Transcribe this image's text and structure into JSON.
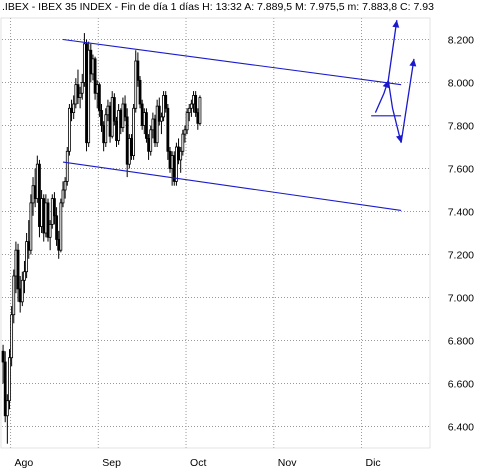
{
  "header": {
    "text": ".IBEX - IBEX 35 INDEX - Fin de día 1 días  H: 13:32  A: 7.889,5  M: 7.975,5  m: 7.883,8  C: 7.93"
  },
  "colors": {
    "channel": "#1a1acc",
    "candle_up": "#ffffff",
    "candle_down": "#000000",
    "grid": "#9a9a9a"
  },
  "chart_data": {
    "type": "candlestick",
    "title": "",
    "xlabel": "",
    "ylabel": "",
    "ylim": [
      6300,
      8300
    ],
    "grid": true,
    "y_axis_side": "right",
    "y_ticks": [
      "8.200",
      "8.000",
      "7.800",
      "7.600",
      "7.400",
      "7.200",
      "7.000",
      "6.800",
      "6.600",
      "6.400"
    ],
    "y_tick_values": [
      8200,
      8000,
      7800,
      7600,
      7400,
      7200,
      7000,
      6800,
      6600,
      6400
    ],
    "x_ticks": [
      "Ago",
      "Sep",
      "Oct",
      "Nov",
      "Dic"
    ],
    "x_tick_index": [
      4,
      45,
      86,
      127,
      168
    ],
    "series": [
      {
        "name": "",
        "ohlc": [
          [
            6750,
            6780,
            6600,
            6700
          ],
          [
            6700,
            6750,
            6420,
            6450
          ],
          [
            6450,
            6550,
            6320,
            6520
          ],
          [
            6520,
            6760,
            6480,
            6720
          ],
          [
            6720,
            6960,
            6680,
            6920
          ],
          [
            6920,
            7130,
            6880,
            7100
          ],
          [
            7100,
            7260,
            7020,
            7220
          ],
          [
            7220,
            7250,
            6980,
            7040
          ],
          [
            7040,
            7100,
            6930,
            6980
          ],
          [
            6980,
            7120,
            6960,
            7080
          ],
          [
            7080,
            7170,
            7020,
            7120
          ],
          [
            7120,
            7300,
            7090,
            7260
          ],
          [
            7260,
            7360,
            7180,
            7220
          ],
          [
            7220,
            7480,
            7200,
            7440
          ],
          [
            7440,
            7560,
            7380,
            7520
          ],
          [
            7520,
            7600,
            7420,
            7460
          ],
          [
            7460,
            7660,
            7440,
            7620
          ],
          [
            7620,
            7640,
            7280,
            7330
          ],
          [
            7330,
            7500,
            7300,
            7460
          ],
          [
            7460,
            7480,
            7260,
            7300
          ],
          [
            7300,
            7480,
            7280,
            7440
          ],
          [
            7440,
            7460,
            7260,
            7280
          ],
          [
            7280,
            7360,
            7220,
            7340
          ],
          [
            7340,
            7480,
            7320,
            7460
          ],
          [
            7460,
            7490,
            7340,
            7380
          ],
          [
            7380,
            7420,
            7240,
            7270
          ],
          [
            7270,
            7310,
            7180,
            7220
          ],
          [
            7220,
            7460,
            7210,
            7440
          ],
          [
            7440,
            7540,
            7420,
            7500
          ],
          [
            7500,
            7560,
            7460,
            7540
          ],
          [
            7540,
            7700,
            7520,
            7680
          ],
          [
            7680,
            7900,
            7660,
            7880
          ],
          [
            7880,
            7920,
            7820,
            7860
          ],
          [
            7860,
            7940,
            7830,
            7900
          ],
          [
            7900,
            8020,
            7880,
            7990
          ],
          [
            7990,
            8060,
            7900,
            7930
          ],
          [
            7930,
            7980,
            7880,
            7950
          ],
          [
            7950,
            8040,
            7920,
            8000
          ],
          [
            8000,
            8230,
            7980,
            8180
          ],
          [
            8180,
            8200,
            7680,
            7720
          ],
          [
            7720,
            8190,
            7700,
            8150
          ],
          [
            8150,
            8180,
            8000,
            8040
          ],
          [
            8040,
            8130,
            8010,
            8110
          ],
          [
            8110,
            8120,
            7920,
            7950
          ],
          [
            7950,
            8010,
            7880,
            7990
          ],
          [
            7990,
            8000,
            7840,
            7870
          ],
          [
            7870,
            7900,
            7770,
            7800
          ],
          [
            7800,
            7820,
            7680,
            7720
          ],
          [
            7720,
            7880,
            7700,
            7850
          ],
          [
            7850,
            7920,
            7820,
            7890
          ],
          [
            7890,
            7910,
            7720,
            7750
          ],
          [
            7750,
            7960,
            7740,
            7930
          ],
          [
            7930,
            7950,
            7800,
            7820
          ],
          [
            7820,
            7840,
            7700,
            7730
          ],
          [
            7730,
            7900,
            7710,
            7870
          ],
          [
            7870,
            7880,
            7760,
            7790
          ],
          [
            7790,
            7930,
            7770,
            7900
          ],
          [
            7900,
            7940,
            7820,
            7840
          ],
          [
            7840,
            7880,
            7560,
            7620
          ],
          [
            7620,
            7760,
            7600,
            7740
          ],
          [
            7740,
            7760,
            7640,
            7660
          ],
          [
            7660,
            7900,
            7640,
            7880
          ],
          [
            7880,
            8150,
            7860,
            8100
          ],
          [
            8100,
            8140,
            7980,
            8010
          ],
          [
            8010,
            8030,
            7880,
            7900
          ],
          [
            7900,
            7920,
            7780,
            7800
          ],
          [
            7800,
            7880,
            7760,
            7860
          ],
          [
            7860,
            7880,
            7720,
            7740
          ],
          [
            7740,
            7760,
            7640,
            7680
          ],
          [
            7680,
            7800,
            7660,
            7780
          ],
          [
            7780,
            7860,
            7740,
            7830
          ],
          [
            7830,
            7850,
            7700,
            7720
          ],
          [
            7720,
            7920,
            7700,
            7890
          ],
          [
            7890,
            7930,
            7800,
            7820
          ],
          [
            7820,
            7860,
            7760,
            7840
          ],
          [
            7840,
            7960,
            7820,
            7940
          ],
          [
            7940,
            7960,
            7860,
            7880
          ],
          [
            7880,
            7900,
            7640,
            7680
          ],
          [
            7680,
            7700,
            7580,
            7600
          ],
          [
            7600,
            7680,
            7520,
            7660
          ],
          [
            7660,
            7680,
            7520,
            7540
          ],
          [
            7540,
            7720,
            7520,
            7700
          ],
          [
            7700,
            7740,
            7620,
            7640
          ],
          [
            7640,
            7700,
            7580,
            7680
          ],
          [
            7680,
            7780,
            7660,
            7760
          ],
          [
            7760,
            7800,
            7720,
            7780
          ],
          [
            7780,
            7880,
            7760,
            7860
          ],
          [
            7860,
            7900,
            7820,
            7880
          ],
          [
            7880,
            7920,
            7840,
            7900
          ],
          [
            7900,
            7960,
            7860,
            7940
          ],
          [
            7940,
            7960,
            7840,
            7860
          ],
          [
            7860,
            7880,
            7780,
            7810
          ],
          [
            7810,
            7940,
            7800,
            7930
          ]
        ]
      }
    ],
    "annotations": {
      "channel_upper": [
        [
          28,
          8200
        ],
        [
          186,
          7990
        ]
      ],
      "channel_lower": [
        [
          28,
          7630
        ],
        [
          186,
          7405
        ]
      ],
      "level_line": [
        [
          172,
          7845
        ],
        [
          186,
          7845
        ]
      ],
      "projection_path": [
        [
          174,
          7860
        ],
        [
          178,
          7950
        ],
        [
          180,
          8010
        ],
        [
          182,
          7880
        ],
        [
          186,
          7720
        ],
        [
          192,
          8110
        ]
      ],
      "projection_branch": [
        [
          180,
          8010
        ],
        [
          184,
          8290
        ]
      ]
    }
  }
}
